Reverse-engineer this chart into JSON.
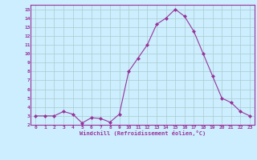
{
  "x": [
    0,
    1,
    2,
    3,
    4,
    5,
    6,
    7,
    8,
    9,
    10,
    11,
    12,
    13,
    14,
    15,
    16,
    17,
    18,
    19,
    20,
    21,
    22,
    23
  ],
  "y": [
    3,
    3,
    3,
    3.5,
    3.2,
    2.2,
    2.8,
    2.7,
    2.3,
    3.2,
    8,
    9.5,
    11,
    13.3,
    14,
    15,
    14.2,
    12.5,
    10,
    7.5,
    5,
    4.5,
    3.5,
    3
  ],
  "line_color": "#993399",
  "marker": "D",
  "marker_size": 2,
  "bg_color": "#cceeff",
  "grid_color": "#aacccc",
  "xlabel": "Windchill (Refroidissement éolien,°C)",
  "xlabel_color": "#993399",
  "tick_color": "#993399",
  "xlim": [
    -0.5,
    23.5
  ],
  "ylim": [
    2,
    15.5
  ],
  "yticks": [
    2,
    3,
    4,
    5,
    6,
    7,
    8,
    9,
    10,
    11,
    12,
    13,
    14,
    15
  ],
  "xticks": [
    0,
    1,
    2,
    3,
    4,
    5,
    6,
    7,
    8,
    9,
    10,
    11,
    12,
    13,
    14,
    15,
    16,
    17,
    18,
    19,
    20,
    21,
    22,
    23
  ]
}
